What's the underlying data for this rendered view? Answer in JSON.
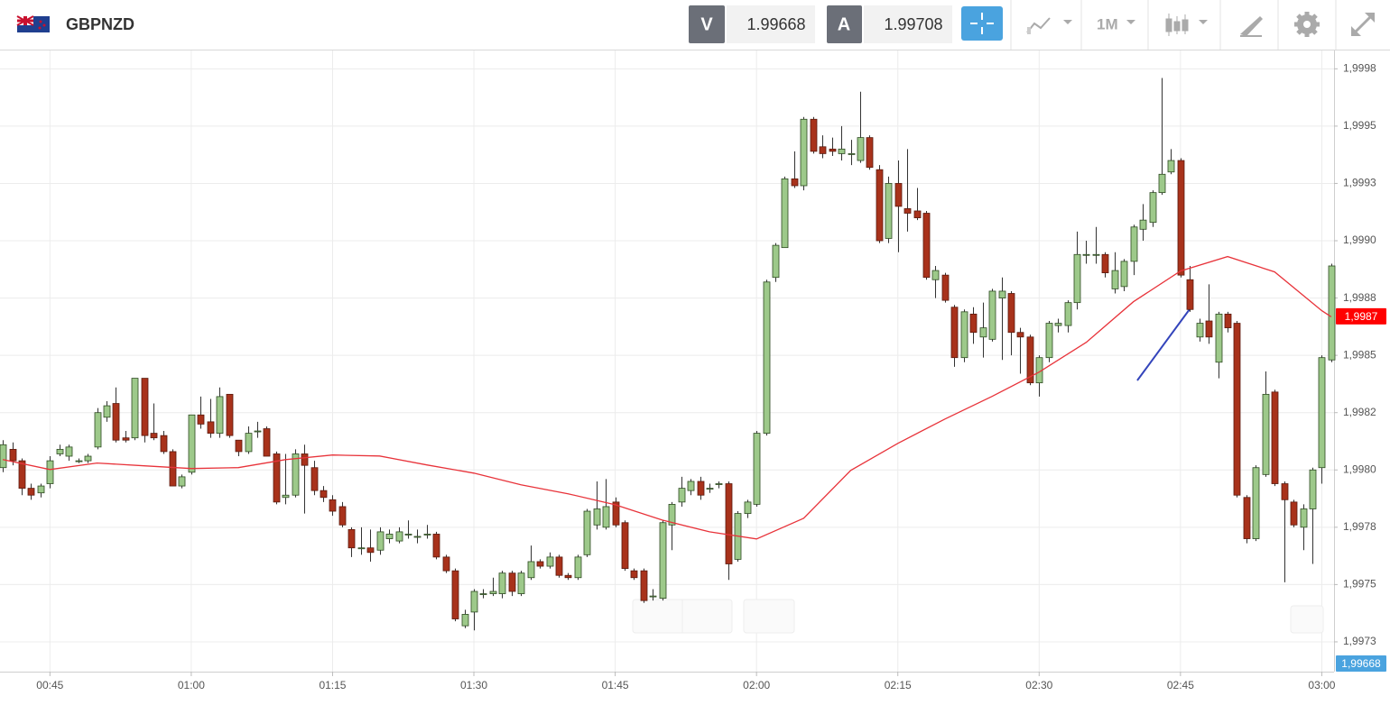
{
  "header": {
    "symbol": "GBPNZD",
    "bid_label": "V",
    "bid": "1.99668",
    "ask_label": "A",
    "ask": "1.99708",
    "timeframe": "1M"
  },
  "chart_data": {
    "type": "candlestick",
    "up_color": "#9dc98a",
    "down_color": "#a8321b",
    "grid": true,
    "xlim": [
      39.7,
      181.3
    ],
    "ylim": [
      1.99712,
      1.99983
    ],
    "xticks": [
      {
        "value": 45,
        "label": "00:45"
      },
      {
        "value": 60,
        "label": "01:00"
      },
      {
        "value": 75,
        "label": "01:15"
      },
      {
        "value": 90,
        "label": "01:30"
      },
      {
        "value": 105,
        "label": "01:45"
      },
      {
        "value": 120,
        "label": "02:00"
      },
      {
        "value": 135,
        "label": "02:15"
      },
      {
        "value": 150,
        "label": "02:30"
      },
      {
        "value": 165,
        "label": "02:45"
      },
      {
        "value": 180,
        "label": "03:00"
      }
    ],
    "yticks": [
      {
        "value": 1.99975,
        "label": "1,9998"
      },
      {
        "value": 1.9995,
        "label": "1,9995"
      },
      {
        "value": 1.99925,
        "label": "1,9993"
      },
      {
        "value": 1.999,
        "label": "1,9990"
      },
      {
        "value": 1.99875,
        "label": "1,9988"
      },
      {
        "value": 1.9985,
        "label": "1,9985"
      },
      {
        "value": 1.99825,
        "label": "1,9982"
      },
      {
        "value": 1.998,
        "label": "1,9980"
      },
      {
        "value": 1.99775,
        "label": "1,9978"
      },
      {
        "value": 1.9975,
        "label": "1,9975"
      },
      {
        "value": 1.99725,
        "label": "1,9973"
      }
    ],
    "x": [
      40,
      41,
      42,
      43,
      44,
      45,
      46,
      47,
      48,
      49,
      50,
      51,
      52,
      53,
      54,
      55,
      56,
      57,
      58,
      59,
      60,
      61,
      62,
      63,
      64,
      65,
      66,
      67,
      68,
      69,
      70,
      71,
      72,
      73,
      74,
      75,
      76,
      77,
      78,
      79,
      80,
      81,
      82,
      83,
      84,
      85,
      86,
      87,
      88,
      89,
      90,
      91,
      92,
      93,
      94,
      95,
      96,
      97,
      98,
      99,
      100,
      101,
      102,
      103,
      104,
      105,
      106,
      107,
      108,
      109,
      110,
      111,
      112,
      113,
      114,
      115,
      116,
      117,
      118,
      119,
      120,
      121,
      122,
      123,
      124,
      125,
      126,
      127,
      128,
      129,
      130,
      131,
      132,
      133,
      134,
      135,
      136,
      137,
      138,
      139,
      140,
      141,
      142,
      143,
      144,
      145,
      146,
      147,
      148,
      149,
      150,
      151,
      152,
      153,
      154,
      155,
      156,
      157,
      158,
      159,
      160,
      161,
      162,
      163,
      164,
      165,
      166,
      167,
      168,
      169,
      170,
      171,
      172,
      173,
      174,
      175,
      176,
      177,
      178,
      179,
      180,
      181
    ],
    "open": [
      1.99801,
      1.99809,
      1.99804,
      1.99792,
      1.9979,
      1.99794,
      1.99807,
      1.99806,
      1.99804,
      1.99804,
      1.9981,
      1.99823,
      1.99829,
      1.99814,
      1.99814,
      1.9984,
      1.99816,
      1.99815,
      1.99808,
      1.99793,
      1.99799,
      1.99824,
      1.99821,
      1.99816,
      1.99833,
      1.99813,
      1.99808,
      1.99817,
      1.99818,
      1.99807,
      1.99788,
      1.99789,
      1.99807,
      1.99801,
      1.99791,
      1.99787,
      1.99784,
      1.99774,
      1.99766,
      1.99766,
      1.99765,
      1.9977,
      1.99769,
      1.99772,
      1.99771,
      1.99772,
      1.99772,
      1.99762,
      1.99756,
      1.99732,
      1.99738,
      1.99746,
      1.99746,
      1.99746,
      1.99755,
      1.99746,
      1.99753,
      1.9976,
      1.99758,
      1.99762,
      1.99754,
      1.99753,
      1.99763,
      1.99776,
      1.99775,
      1.99786,
      1.99777,
      1.99756,
      1.99756,
      1.99745,
      1.99744,
      1.99776,
      1.99786,
      1.99791,
      1.99795,
      1.99792,
      1.99794,
      1.99794,
      1.99761,
      1.99781,
      1.99785,
      1.99816,
      1.99884,
      1.99897,
      1.99927,
      1.99924,
      1.99953,
      1.99941,
      1.9994,
      1.99938,
      1.99938,
      1.99935,
      1.99945,
      1.99931,
      1.99901,
      1.99925,
      1.99914,
      1.99913,
      1.99912,
      1.99883,
      1.99885,
      1.99871,
      1.99849,
      1.99868,
      1.99858,
      1.99857,
      1.99875,
      1.99877,
      1.9986,
      1.99858,
      1.99838,
      1.99849,
      1.99863,
      1.99863,
      1.99873,
      1.99894,
      1.99894,
      1.99894,
      1.99879,
      1.9988,
      1.99891,
      1.99905,
      1.99908,
      1.99921,
      1.9993,
      1.99935,
      1.99883,
      1.99858,
      1.99865,
      1.99847,
      1.99868,
      1.99864,
      1.99788,
      1.9977,
      1.99798,
      1.99834,
      1.99794,
      1.99786,
      1.99775,
      1.99783,
      1.99801,
      1.99848
    ],
    "high": [
      1.99813,
      1.99812,
      1.99805,
      1.99794,
      1.99794,
      1.99806,
      1.99811,
      1.99811,
      1.99805,
      1.99807,
      1.99827,
      1.9983,
      1.99836,
      1.99817,
      1.9984,
      1.9984,
      1.99829,
      1.99817,
      1.99809,
      1.99798,
      1.99824,
      1.99832,
      1.99831,
      1.99836,
      1.99833,
      1.99813,
      1.99819,
      1.99821,
      1.99819,
      1.99808,
      1.99807,
      1.99809,
      1.99811,
      1.99804,
      1.99793,
      1.99789,
      1.99786,
      1.99775,
      1.99775,
      1.99774,
      1.99775,
      1.99774,
      1.99775,
      1.99778,
      1.99774,
      1.99776,
      1.99773,
      1.99763,
      1.99757,
      1.99739,
      1.99748,
      1.99748,
      1.99753,
      1.99756,
      1.99756,
      1.99756,
      1.99767,
      1.99761,
      1.99764,
      1.99763,
      1.99755,
      1.99763,
      1.99783,
      1.99795,
      1.99796,
      1.99788,
      1.99778,
      1.99757,
      1.99757,
      1.99748,
      1.99778,
      1.99786,
      1.99797,
      1.99796,
      1.99797,
      1.99794,
      1.99795,
      1.99795,
      1.99782,
      1.99787,
      1.99817,
      1.99883,
      1.99899,
      1.99928,
      1.99939,
      1.99954,
      1.99954,
      1.99946,
      1.99945,
      1.9995,
      1.99944,
      1.99965,
      1.99946,
      1.99933,
      1.99928,
      1.99935,
      1.9994,
      1.99923,
      1.99913,
      1.99889,
      1.99886,
      1.99872,
      1.9987,
      1.99871,
      1.99873,
      1.99879,
      1.99884,
      1.99878,
      1.99862,
      1.99859,
      1.9985,
      1.99865,
      1.99866,
      1.99874,
      1.99904,
      1.999,
      1.99906,
      1.99895,
      1.99895,
      1.99892,
      1.99907,
      1.99916,
      1.99922,
      1.99971,
      1.9994,
      1.99936,
      1.99889,
      1.99866,
      1.99881,
      1.99869,
      1.99869,
      1.99865,
      1.99789,
      1.99802,
      1.99843,
      1.99835,
      1.99795,
      1.99787,
      1.99785,
      1.99801,
      1.9985,
      1.9989
    ],
    "low": [
      1.99799,
      1.99802,
      1.99789,
      1.99787,
      1.99788,
      1.99792,
      1.99806,
      1.99804,
      1.99803,
      1.99803,
      1.99809,
      1.99821,
      1.99812,
      1.99812,
      1.99813,
      1.99812,
      1.99813,
      1.99807,
      1.99793,
      1.99792,
      1.99798,
      1.99818,
      1.99814,
      1.99814,
      1.99814,
      1.99806,
      1.99807,
      1.99814,
      1.99806,
      1.99785,
      1.99785,
      1.99788,
      1.99781,
      1.99789,
      1.99786,
      1.9978,
      1.99775,
      1.99762,
      1.99763,
      1.9976,
      1.99763,
      1.99768,
      1.99768,
      1.9977,
      1.99768,
      1.9977,
      1.99761,
      1.99755,
      1.99734,
      1.99731,
      1.9973,
      1.99744,
      1.99745,
      1.99744,
      1.99745,
      1.99745,
      1.99752,
      1.99757,
      1.99757,
      1.99753,
      1.99752,
      1.99752,
      1.99762,
      1.99774,
      1.99774,
      1.99775,
      1.99756,
      1.99752,
      1.99742,
      1.99743,
      1.99743,
      1.99765,
      1.99784,
      1.99789,
      1.99787,
      1.9979,
      1.99792,
      1.99752,
      1.9976,
      1.99779,
      1.99784,
      1.99815,
      1.99882,
      1.99897,
      1.99923,
      1.99922,
      1.99938,
      1.99936,
      1.99937,
      1.99935,
      1.99933,
      1.99934,
      1.99931,
      1.99899,
      1.99899,
      1.99895,
      1.99904,
      1.99909,
      1.99883,
      1.99875,
      1.99873,
      1.99845,
      1.99847,
      1.99855,
      1.99849,
      1.99856,
      1.99848,
      1.9985,
      1.99842,
      1.99837,
      1.99832,
      1.99847,
      1.9986,
      1.9986,
      1.9987,
      1.9989,
      1.9989,
      1.99884,
      1.99877,
      1.99878,
      1.99885,
      1.999,
      1.99906,
      1.9992,
      1.99929,
      1.99884,
      1.99869,
      1.99856,
      1.99855,
      1.9984,
      1.9986,
      1.99788,
      1.99768,
      1.99769,
      1.99797,
      1.99793,
      1.99751,
      1.99775,
      1.99765,
      1.99759,
      1.99794,
      1.99847
    ],
    "close": [
      1.99811,
      1.99804,
      1.99792,
      1.99789,
      1.99793,
      1.99804,
      1.99809,
      1.9981,
      1.99804,
      1.99806,
      1.99825,
      1.99828,
      1.99813,
      1.99813,
      1.9984,
      1.99815,
      1.99814,
      1.99808,
      1.99793,
      1.99797,
      1.99824,
      1.9982,
      1.99816,
      1.99832,
      1.99815,
      1.99808,
      1.99816,
      1.99817,
      1.99806,
      1.99786,
      1.99789,
      1.99807,
      1.99802,
      1.99791,
      1.99788,
      1.99782,
      1.99776,
      1.99766,
      1.99766,
      1.99764,
      1.99773,
      1.99772,
      1.99773,
      1.99772,
      1.99771,
      1.99772,
      1.99762,
      1.99756,
      1.99735,
      1.99737,
      1.99747,
      1.99746,
      1.99747,
      1.99755,
      1.99747,
      1.99755,
      1.9976,
      1.99758,
      1.99762,
      1.99754,
      1.99753,
      1.99762,
      1.99782,
      1.99783,
      1.99784,
      1.99776,
      1.99757,
      1.99753,
      1.99743,
      1.99745,
      1.99777,
      1.99785,
      1.99792,
      1.99795,
      1.99789,
      1.99792,
      1.99794,
      1.99759,
      1.99781,
      1.99786,
      1.99816,
      1.99882,
      1.99898,
      1.99927,
      1.99924,
      1.99953,
      1.99939,
      1.99938,
      1.99939,
      1.9994,
      1.99938,
      1.99945,
      1.99932,
      1.999,
      1.99925,
      1.99915,
      1.99912,
      1.9991,
      1.99884,
      1.99887,
      1.99874,
      1.99849,
      1.99869,
      1.9986,
      1.99862,
      1.99878,
      1.99878,
      1.9986,
      1.99858,
      1.99838,
      1.99849,
      1.99864,
      1.99864,
      1.99873,
      1.99894,
      1.99894,
      1.99894,
      1.99886,
      1.99887,
      1.99891,
      1.99906,
      1.99909,
      1.99921,
      1.99929,
      1.99935,
      1.99885,
      1.9987,
      1.99864,
      1.99858,
      1.99868,
      1.99862,
      1.99789,
      1.9977,
      1.99801,
      1.99833,
      1.99794,
      1.99787,
      1.99776,
      1.99783,
      1.998,
      1.99849,
      1.99889
    ],
    "ma": {
      "color": "#e8333a",
      "x": [
        40,
        45,
        50,
        55,
        60,
        65,
        70,
        75,
        80,
        85,
        90,
        95,
        100,
        105,
        110,
        115,
        120,
        125,
        130,
        135,
        140,
        145,
        150,
        155,
        160,
        165,
        170,
        175,
        180,
        181
      ],
      "values": [
        1.998045,
        1.998002,
        1.99803,
        1.998018,
        1.998006,
        1.99801,
        1.998045,
        1.998065,
        1.998061,
        1.998022,
        1.997986,
        1.997935,
        1.997896,
        1.997848,
        1.997781,
        1.99773,
        1.997699,
        1.997789,
        1.997998,
        1.998116,
        1.998222,
        1.998321,
        1.998427,
        1.998557,
        1.998734,
        1.998868,
        1.998931,
        1.998864,
        1.998695,
        1.998668
      ]
    },
    "price_markers": [
      {
        "value": 1.99867,
        "label": "1,9987",
        "color": "#ff0000"
      },
      {
        "value": 1.99668,
        "label": "1,99668",
        "color": "#4aa3df"
      }
    ]
  }
}
